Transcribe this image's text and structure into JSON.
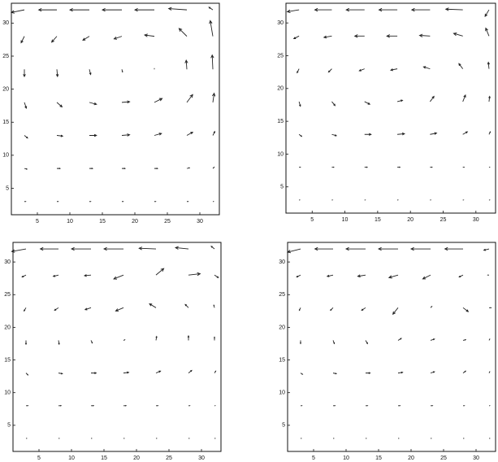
{
  "chart_data": [
    {
      "type": "quiver",
      "x": [
        3,
        8,
        13,
        18,
        23,
        28,
        32
      ],
      "y": [
        3,
        8,
        13,
        18,
        23,
        28,
        32
      ],
      "u": [
        [
          0.2,
          0.2,
          0.2,
          0.2,
          0.2,
          0.2,
          0.1
        ],
        [
          0.4,
          0.5,
          0.5,
          0.5,
          0.5,
          0.4,
          0.2
        ],
        [
          0.5,
          0.9,
          1.1,
          1.2,
          1.1,
          0.9,
          0.3
        ],
        [
          0.3,
          0.8,
          1.1,
          1.2,
          1.2,
          0.9,
          0.2
        ],
        [
          0,
          0.1,
          0.2,
          0.1,
          0,
          -0.1,
          -0.1
        ],
        [
          -0.5,
          -0.8,
          -1.0,
          -1.2,
          -1.5,
          -1.2,
          -0.4
        ],
        [
          -2.0,
          -2.8,
          -3.0,
          -3.0,
          -3.0,
          -2.8,
          -0.6
        ]
      ],
      "v": [
        [
          0,
          0,
          0,
          0,
          0,
          0,
          0
        ],
        [
          -0.1,
          0,
          0,
          0,
          0,
          0.1,
          0.2
        ],
        [
          -0.4,
          -0.1,
          0,
          0.1,
          0.3,
          0.5,
          0.6
        ],
        [
          -0.9,
          -0.7,
          -0.3,
          0.1,
          0.6,
          1.2,
          1.4
        ],
        [
          -1.1,
          -1.1,
          -0.8,
          -0.4,
          0.1,
          1.4,
          2.2
        ],
        [
          -1.0,
          -0.9,
          -0.6,
          -0.4,
          0.2,
          1.2,
          2.4
        ],
        [
          -0.4,
          0,
          0,
          0,
          0,
          0.2,
          0.4
        ]
      ],
      "xlim": [
        1,
        33
      ],
      "ylim": [
        1,
        33
      ],
      "xticks": [
        5,
        10,
        15,
        20,
        25,
        30
      ],
      "yticks": [
        5,
        10,
        15,
        20,
        25,
        30
      ],
      "color": "#222222"
    },
    {
      "type": "quiver",
      "x": [
        3,
        8,
        13,
        18,
        23,
        28,
        32
      ],
      "y": [
        3,
        8,
        13,
        18,
        23,
        28,
        32
      ],
      "u": [
        [
          0.1,
          0.1,
          0.1,
          0.1,
          0.1,
          0.1,
          0.1
        ],
        [
          0.2,
          0.3,
          0.4,
          0.4,
          0.3,
          0.2,
          0.1
        ],
        [
          0.4,
          0.7,
          1.0,
          1.1,
          1.0,
          0.7,
          0.2
        ],
        [
          0.2,
          0.5,
          0.8,
          0.8,
          0.6,
          0.4,
          0.1
        ],
        [
          -0.3,
          -0.5,
          -0.8,
          -1.0,
          -1.0,
          -0.6,
          -0.1
        ],
        [
          -0.8,
          -1.2,
          -1.5,
          -1.6,
          -1.6,
          -1.4,
          -0.5
        ],
        [
          -1.8,
          -2.6,
          -2.8,
          -2.8,
          -2.8,
          -2.6,
          -0.6
        ]
      ],
      "v": [
        [
          0,
          0,
          0,
          0,
          0,
          0,
          0
        ],
        [
          0,
          0,
          0,
          0,
          0,
          0,
          0
        ],
        [
          -0.3,
          -0.2,
          0,
          0.1,
          0.2,
          0.4,
          0.4
        ],
        [
          -0.7,
          -0.6,
          -0.4,
          0.2,
          0.8,
          1.0,
          0.8
        ],
        [
          -0.6,
          -0.5,
          -0.3,
          -0.2,
          0.3,
          0.8,
          1.0
        ],
        [
          -0.4,
          -0.2,
          0,
          0,
          0.1,
          0.4,
          1.2
        ],
        [
          -0.3,
          0,
          0,
          0,
          0,
          0.1,
          -1.0
        ]
      ],
      "xlim": [
        1,
        33
      ],
      "ylim": [
        1,
        33
      ],
      "xticks": [
        5,
        10,
        15,
        20,
        25,
        30
      ],
      "yticks": [
        5,
        10,
        15,
        20,
        25,
        30
      ],
      "color": "#222222"
    },
    {
      "type": "quiver",
      "x": [
        3,
        8,
        13,
        18,
        23,
        28,
        32
      ],
      "y": [
        3,
        8,
        13,
        18,
        23,
        28,
        32
      ],
      "u": [
        [
          0.1,
          0.1,
          0.1,
          0.1,
          0.1,
          0.1,
          0.1
        ],
        [
          0.3,
          0.4,
          0.4,
          0.4,
          0.3,
          0.2,
          0.1
        ],
        [
          0.3,
          0.6,
          0.8,
          0.8,
          0.7,
          0.5,
          0.2
        ],
        [
          0,
          0.1,
          0.2,
          0.2,
          0.1,
          0,
          0
        ],
        [
          -0.3,
          -0.6,
          -0.9,
          -1.2,
          -1.0,
          -0.5,
          -0.1
        ],
        [
          -0.6,
          -0.8,
          -1.0,
          -1.5,
          1.2,
          1.8,
          0.6
        ],
        [
          -2.2,
          -2.8,
          -3.0,
          -3.0,
          -2.6,
          -2.0,
          -0.5
        ]
      ],
      "v": [
        [
          0,
          0,
          0,
          0,
          0,
          0,
          0
        ],
        [
          0,
          0,
          0,
          0,
          0,
          0,
          0
        ],
        [
          -0.3,
          -0.1,
          0,
          0.1,
          0.3,
          0.4,
          0.3
        ],
        [
          -0.6,
          -0.6,
          -0.4,
          0.1,
          0.6,
          0.7,
          0.5
        ],
        [
          -0.5,
          -0.4,
          -0.3,
          -0.5,
          0.6,
          0.5,
          0.4
        ],
        [
          -0.3,
          -0.2,
          -0.1,
          -0.6,
          1.0,
          0.2,
          -0.4
        ],
        [
          -0.4,
          0,
          0,
          0,
          0.1,
          0.2,
          0.4
        ]
      ],
      "xlim": [
        1,
        33
      ],
      "ylim": [
        1,
        33
      ],
      "xticks": [
        5,
        10,
        15,
        20,
        25,
        30
      ],
      "yticks": [
        5,
        10,
        15,
        20,
        25,
        30
      ],
      "color": "#222222"
    },
    {
      "type": "quiver",
      "x": [
        3,
        8,
        13,
        18,
        23,
        28,
        32
      ],
      "y": [
        3,
        8,
        13,
        18,
        23,
        28,
        32
      ],
      "u": [
        [
          0.1,
          0.1,
          0.1,
          0.1,
          0.1,
          0.1,
          0.1
        ],
        [
          0.2,
          0.3,
          0.3,
          0.3,
          0.3,
          0.2,
          0.1
        ],
        [
          0.3,
          0.5,
          0.7,
          0.7,
          0.6,
          0.4,
          0.1
        ],
        [
          0,
          0.2,
          0.3,
          0.5,
          0.6,
          0.4,
          0.1
        ],
        [
          -0.2,
          -0.4,
          -0.6,
          -0.8,
          0.2,
          0.8,
          0.3
        ],
        [
          -0.6,
          -0.9,
          -1.2,
          -1.4,
          -1.2,
          -0.6,
          -0.2
        ],
        [
          -2.0,
          -2.8,
          -3.0,
          -3.0,
          -3.0,
          -2.8,
          -0.8
        ]
      ],
      "v": [
        [
          0,
          0,
          0,
          0,
          0,
          0,
          0
        ],
        [
          0,
          0,
          0,
          0,
          0,
          0,
          0
        ],
        [
          -0.2,
          -0.1,
          0,
          0.1,
          0.2,
          0.3,
          0.2
        ],
        [
          -0.5,
          -0.5,
          -0.5,
          0.3,
          0.2,
          0.1,
          0.2
        ],
        [
          -0.4,
          -0.4,
          -0.4,
          -1.0,
          0.2,
          -0.6,
          0
        ],
        [
          -0.3,
          -0.2,
          -0.2,
          -0.4,
          -0.6,
          -0.3,
          0
        ],
        [
          -0.5,
          0,
          0,
          0,
          0,
          0,
          -0.2
        ]
      ],
      "xlim": [
        1,
        33
      ],
      "ylim": [
        1,
        33
      ],
      "xticks": [
        5,
        10,
        15,
        20,
        25,
        30
      ],
      "yticks": [
        5,
        10,
        15,
        20,
        25,
        30
      ],
      "color": "#222222"
    }
  ]
}
